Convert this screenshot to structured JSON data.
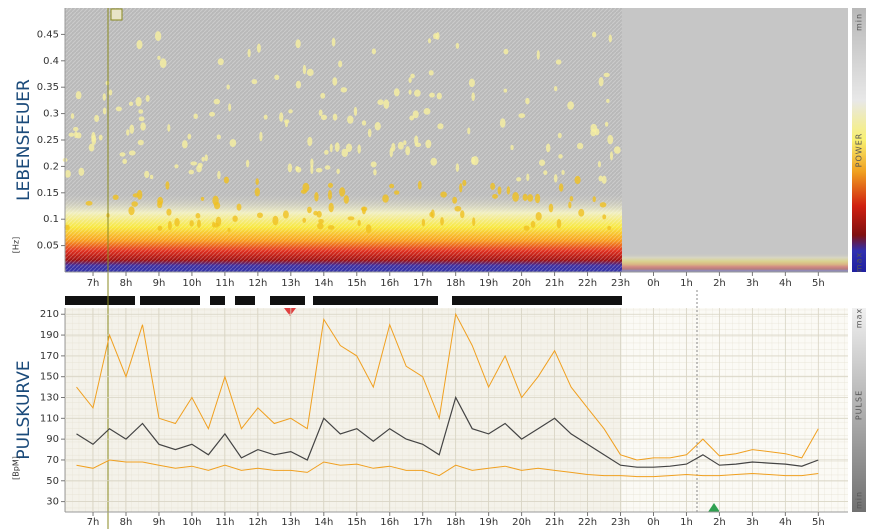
{
  "chart_data": [
    {
      "type": "spectrogram",
      "title": "LEBENSFEUER",
      "y_label": "[Hz]",
      "ylim": [
        0,
        0.5
      ],
      "yticks": [
        0.05,
        0.1,
        0.15,
        0.2,
        0.25,
        0.3,
        0.35,
        0.4,
        0.45
      ],
      "xlim": [
        6.15,
        29.9
      ],
      "xticks": [
        {
          "value": 7,
          "label": "7h"
        },
        {
          "value": 8,
          "label": "8h"
        },
        {
          "value": 9,
          "label": "9h"
        },
        {
          "value": 10,
          "label": "10h"
        },
        {
          "value": 11,
          "label": "11h"
        },
        {
          "value": 12,
          "label": "12h"
        },
        {
          "value": 13,
          "label": "13h"
        },
        {
          "value": 14,
          "label": "14h"
        },
        {
          "value": 15,
          "label": "15h"
        },
        {
          "value": 16,
          "label": "16h"
        },
        {
          "value": 17,
          "label": "17h"
        },
        {
          "value": 18,
          "label": "18h"
        },
        {
          "value": 19,
          "label": "19h"
        },
        {
          "value": 20,
          "label": "20h"
        },
        {
          "value": 21,
          "label": "21h"
        },
        {
          "value": 22,
          "label": "22h"
        },
        {
          "value": 23,
          "label": "23h"
        },
        {
          "value": 24,
          "label": "0h"
        },
        {
          "value": 25,
          "label": "1h"
        },
        {
          "value": 26,
          "label": "2h"
        },
        {
          "value": 27,
          "label": "3h"
        },
        {
          "value": 28,
          "label": "4h"
        },
        {
          "value": 29,
          "label": "5h"
        }
      ],
      "colorbar": {
        "top": "min",
        "middle": "POWER",
        "bottom": "max"
      }
    },
    {
      "type": "line",
      "title": "PULSKURVE",
      "y_label": "[BpM]",
      "ylim": [
        20,
        216
      ],
      "yticks": [
        30,
        50,
        70,
        90,
        110,
        130,
        150,
        170,
        190,
        210
      ],
      "xlim": [
        6.15,
        29.9
      ],
      "xticks": [
        {
          "value": 7,
          "label": "7h"
        },
        {
          "value": 8,
          "label": "8h"
        },
        {
          "value": 9,
          "label": "9h"
        },
        {
          "value": 10,
          "label": "10h"
        },
        {
          "value": 11,
          "label": "11h"
        },
        {
          "value": 12,
          "label": "12h"
        },
        {
          "value": 13,
          "label": "13h"
        },
        {
          "value": 14,
          "label": "14h"
        },
        {
          "value": 15,
          "label": "15h"
        },
        {
          "value": 16,
          "label": "16h"
        },
        {
          "value": 17,
          "label": "17h"
        },
        {
          "value": 18,
          "label": "18h"
        },
        {
          "value": 19,
          "label": "19h"
        },
        {
          "value": 20,
          "label": "20h"
        },
        {
          "value": 21,
          "label": "21h"
        },
        {
          "value": 22,
          "label": "22h"
        },
        {
          "value": 23,
          "label": "23h"
        },
        {
          "value": 24,
          "label": "0h"
        },
        {
          "value": 25,
          "label": "1h"
        },
        {
          "value": 26,
          "label": "2h"
        },
        {
          "value": 27,
          "label": "3h"
        },
        {
          "value": 28,
          "label": "4h"
        },
        {
          "value": 29,
          "label": "5h"
        }
      ],
      "colorbar": {
        "top": "max",
        "middle": "PULSE",
        "bottom": "min"
      },
      "x": [
        6.5,
        7,
        7.5,
        8,
        8.5,
        9,
        9.5,
        10,
        10.5,
        11,
        11.5,
        12,
        12.5,
        13,
        13.5,
        14,
        14.5,
        15,
        15.5,
        16,
        16.5,
        17,
        17.5,
        18,
        18.5,
        19,
        19.5,
        20,
        20.5,
        21,
        21.5,
        22,
        22.5,
        23,
        23.5,
        24,
        24.5,
        25,
        25.5,
        26,
        26.5,
        27,
        27.5,
        28,
        28.5,
        29
      ],
      "series": [
        {
          "color": "#444444",
          "values": [
            95,
            85,
            100,
            90,
            105,
            85,
            80,
            85,
            75,
            95,
            72,
            80,
            75,
            78,
            70,
            110,
            95,
            100,
            88,
            100,
            90,
            85,
            75,
            130,
            100,
            95,
            105,
            90,
            100,
            110,
            95,
            85,
            75,
            65,
            63,
            63,
            64,
            66,
            75,
            65,
            66,
            68,
            67,
            66,
            64,
            70
          ]
        },
        {
          "color": "#f0a020",
          "values": [
            140,
            120,
            190,
            150,
            200,
            110,
            105,
            130,
            100,
            150,
            100,
            120,
            105,
            110,
            100,
            205,
            180,
            170,
            140,
            200,
            160,
            150,
            110,
            210,
            180,
            140,
            170,
            130,
            150,
            175,
            140,
            120,
            100,
            75,
            70,
            72,
            72,
            75,
            90,
            74,
            76,
            80,
            78,
            76,
            72,
            100
          ]
        },
        {
          "color": "#f0a020",
          "values": [
            65,
            62,
            70,
            68,
            68,
            65,
            62,
            64,
            60,
            65,
            60,
            62,
            60,
            60,
            58,
            68,
            65,
            66,
            62,
            64,
            60,
            60,
            55,
            65,
            60,
            62,
            64,
            60,
            62,
            60,
            58,
            56,
            55,
            55,
            54,
            54,
            55,
            56,
            55,
            55,
            56,
            57,
            56,
            55,
            55,
            57
          ]
        }
      ]
    }
  ]
}
